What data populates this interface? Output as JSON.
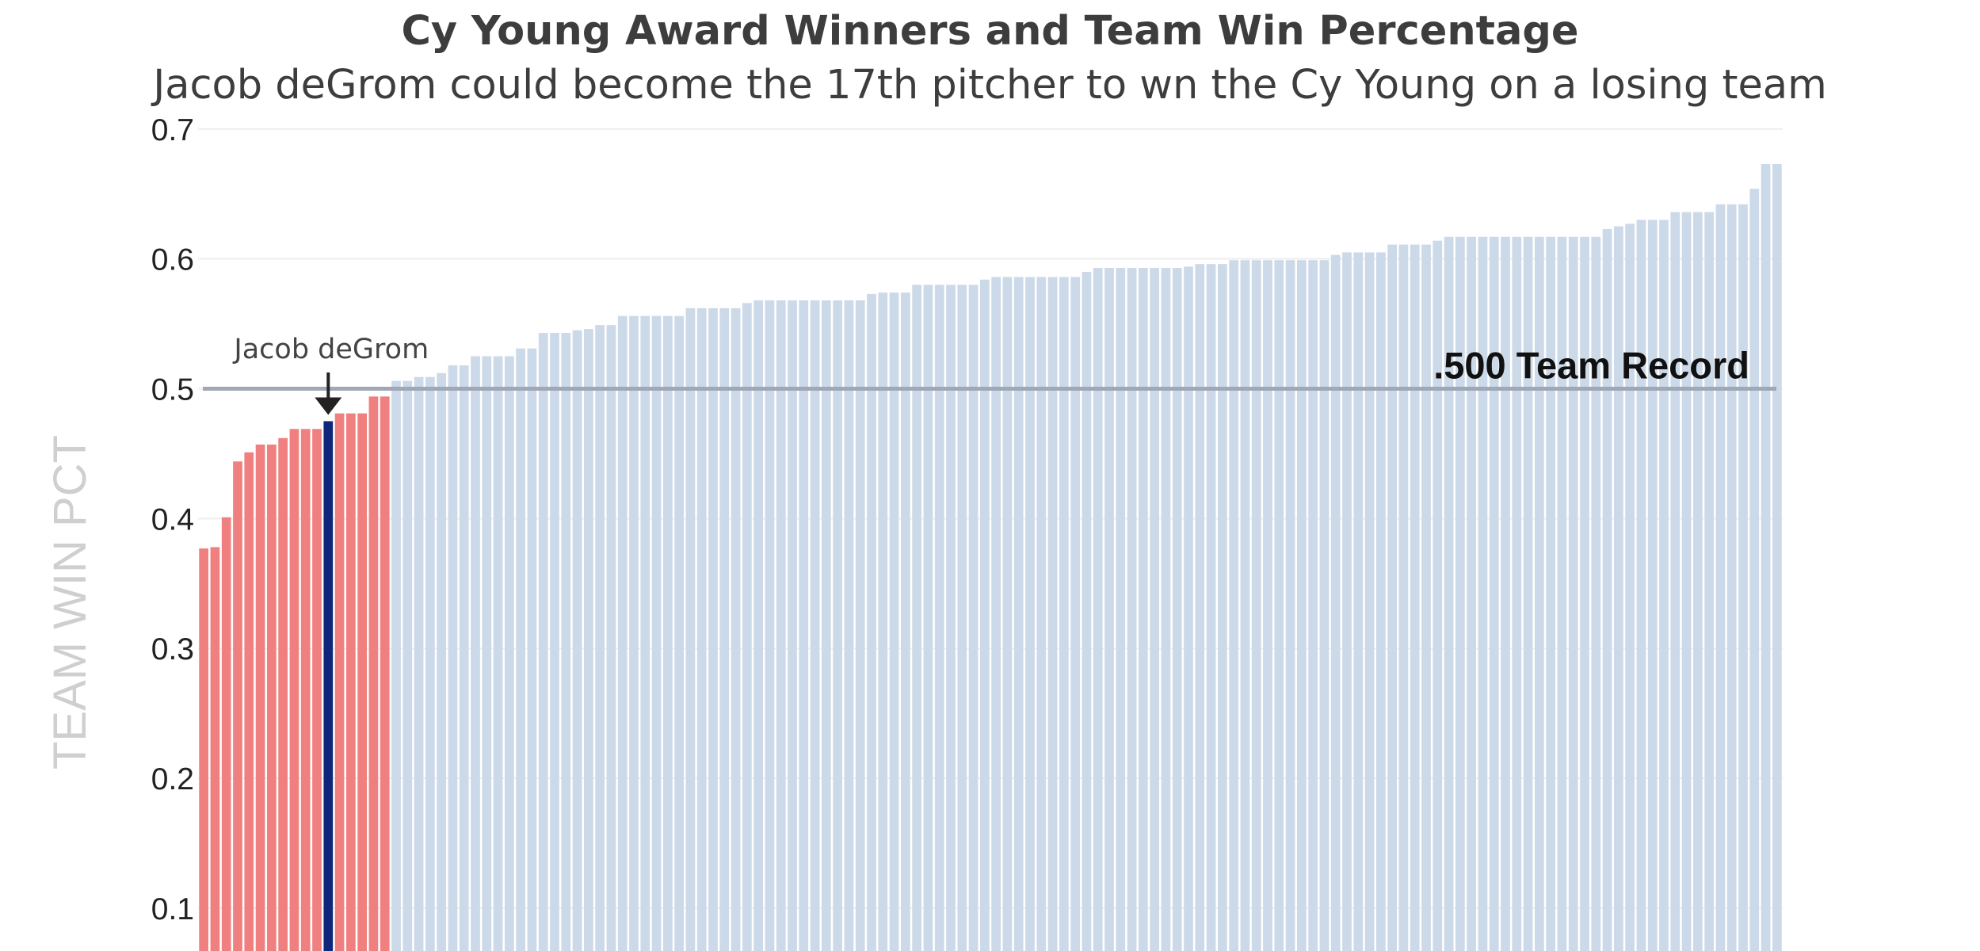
{
  "chart_data": {
    "type": "bar",
    "title": "Cy Young Award Winners and Team Win Percentage",
    "subtitle": "Jacob deGrom could become the 17th pitcher to wn the Cy Young on a losing team",
    "xlabel": "",
    "ylabel": "TEAM WIN PCT",
    "ylim": [
      0.067,
      0.72
    ],
    "yticks": [
      0.1,
      0.2,
      0.3,
      0.4,
      0.5,
      0.6,
      0.7
    ],
    "grid": true,
    "values": [
      0.377,
      0.378,
      0.401,
      0.444,
      0.451,
      0.457,
      0.457,
      0.462,
      0.469,
      0.469,
      0.469,
      0.475,
      0.481,
      0.481,
      0.481,
      0.494,
      0.494,
      0.506,
      0.506,
      0.509,
      0.509,
      0.512,
      0.518,
      0.518,
      0.525,
      0.525,
      0.525,
      0.525,
      0.531,
      0.531,
      0.543,
      0.543,
      0.543,
      0.545,
      0.546,
      0.549,
      0.549,
      0.556,
      0.556,
      0.556,
      0.556,
      0.556,
      0.556,
      0.562,
      0.562,
      0.562,
      0.562,
      0.562,
      0.566,
      0.568,
      0.568,
      0.568,
      0.568,
      0.568,
      0.568,
      0.568,
      0.568,
      0.568,
      0.568,
      0.573,
      0.574,
      0.574,
      0.574,
      0.58,
      0.58,
      0.58,
      0.58,
      0.58,
      0.58,
      0.584,
      0.586,
      0.586,
      0.586,
      0.586,
      0.586,
      0.586,
      0.586,
      0.586,
      0.59,
      0.593,
      0.593,
      0.593,
      0.593,
      0.593,
      0.593,
      0.593,
      0.593,
      0.594,
      0.596,
      0.596,
      0.596,
      0.599,
      0.599,
      0.599,
      0.599,
      0.599,
      0.599,
      0.599,
      0.599,
      0.599,
      0.603,
      0.605,
      0.605,
      0.605,
      0.605,
      0.611,
      0.611,
      0.611,
      0.611,
      0.614,
      0.617,
      0.617,
      0.617,
      0.617,
      0.617,
      0.617,
      0.617,
      0.617,
      0.617,
      0.617,
      0.617,
      0.617,
      0.617,
      0.617,
      0.623,
      0.625,
      0.627,
      0.63,
      0.63,
      0.63,
      0.636,
      0.636,
      0.636,
      0.636,
      0.642,
      0.642,
      0.642,
      0.654,
      0.673,
      0.673
    ],
    "highlight_index": 11,
    "reference_line": {
      "y": 0.5,
      "label": ".500 Team Record"
    },
    "annotation": {
      "label": "Jacob deGrom",
      "index": 11
    },
    "colors": {
      "below_500": "#f08080",
      "highlight": "#10267a",
      "above_500": "#ccd9e8",
      "reference_line": "#a0a8b8",
      "grid": "#eeeeee",
      "arrow": "#222222"
    }
  }
}
